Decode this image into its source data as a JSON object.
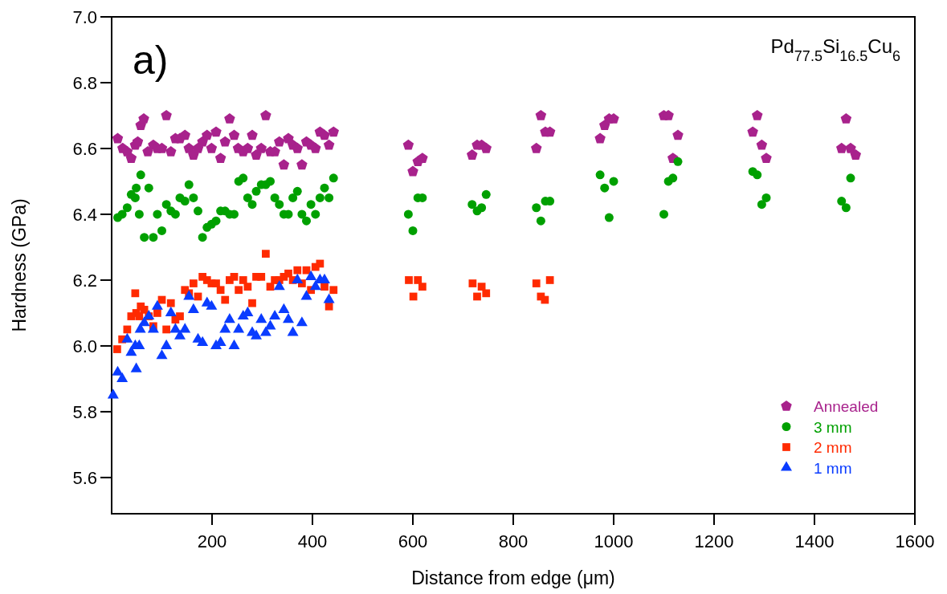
{
  "chart_data": {
    "type": "scatter",
    "xlabel": "Distance from edge (μm)",
    "ylabel": "Hardness (GPa)",
    "annotations": [
      "a)",
      "Pd$_{77.5}$Si$_{16.5}$Cu$_{6}$"
    ],
    "xlim": [
      0,
      1600
    ],
    "xticks": [
      200,
      400,
      600,
      800,
      1000,
      1200,
      1400,
      1600
    ],
    "ylim": [
      5.49,
      7.0
    ],
    "yticks": [
      5.6,
      5.8,
      {
        "value": 6,
        "label": "6.0"
      },
      6.2,
      6.4,
      6.6,
      6.8,
      {
        "value": 7,
        "label": "7.0"
      }
    ],
    "grid": false,
    "legend": "bottom right",
    "series": [
      {
        "name": "Annealed",
        "color": "#a8228c",
        "x": [
          12,
          22,
          31,
          39,
          47,
          52,
          58,
          64,
          72,
          83,
          91,
          100,
          109,
          118,
          127,
          136,
          146,
          154,
          163,
          172,
          181,
          190,
          199,
          208,
          217,
          226,
          235,
          244,
          252,
          262,
          271,
          280,
          288,
          298,
          307,
          316,
          325,
          334,
          343,
          352,
          361,
          370,
          379,
          388,
          397,
          406,
          415,
          424,
          433,
          442,
          591,
          600,
          610,
          619,
          718,
          728,
          737,
          746,
          846,
          855,
          864,
          873,
          973,
          982,
          991,
          1000,
          1100,
          1109,
          1118,
          1128,
          1277,
          1286,
          1295,
          1304,
          1454,
          1463,
          1472,
          1482
        ],
        "values": [
          6.63,
          6.6,
          6.59,
          6.57,
          6.61,
          6.62,
          6.67,
          6.69,
          6.59,
          6.61,
          6.6,
          6.6,
          6.7,
          6.59,
          6.63,
          6.63,
          6.64,
          6.6,
          6.58,
          6.6,
          6.62,
          6.64,
          6.6,
          6.65,
          6.57,
          6.62,
          6.69,
          6.64,
          6.6,
          6.59,
          6.6,
          6.64,
          6.58,
          6.6,
          6.7,
          6.59,
          6.59,
          6.62,
          6.55,
          6.63,
          6.61,
          6.6,
          6.55,
          6.62,
          6.61,
          6.6,
          6.65,
          6.64,
          6.61,
          6.65,
          6.61,
          6.53,
          6.56,
          6.57,
          6.58,
          6.61,
          6.61,
          6.6,
          6.6,
          6.7,
          6.65,
          6.65,
          6.63,
          6.67,
          6.69,
          6.69,
          6.7,
          6.7,
          6.57,
          6.64,
          6.65,
          6.7,
          6.61,
          6.57,
          6.6,
          6.69,
          6.6,
          6.58
        ]
      },
      {
        "name": "3 mm",
        "color": "#00a000",
        "marker": "circle",
        "x": [
          12,
          21,
          31,
          39,
          47,
          49,
          58,
          55,
          65,
          74,
          83,
          91,
          100,
          109,
          118,
          127,
          136,
          146,
          154,
          163,
          172,
          181,
          190,
          199,
          208,
          217,
          226,
          235,
          244,
          253,
          262,
          271,
          280,
          288,
          298,
          307,
          316,
          325,
          334,
          343,
          352,
          361,
          370,
          379,
          388,
          397,
          406,
          415,
          424,
          433,
          442,
          591,
          600,
          610,
          619,
          718,
          728,
          737,
          746,
          846,
          855,
          864,
          873,
          973,
          982,
          991,
          1000,
          1100,
          1109,
          1118,
          1128,
          1277,
          1286,
          1295,
          1304,
          1454,
          1463,
          1472
        ],
        "values": [
          6.39,
          6.4,
          6.42,
          6.46,
          6.45,
          6.48,
          6.52,
          6.4,
          6.33,
          6.48,
          6.33,
          6.4,
          6.35,
          6.43,
          6.41,
          6.4,
          6.45,
          6.44,
          6.49,
          6.45,
          6.41,
          6.33,
          6.36,
          6.37,
          6.38,
          6.41,
          6.41,
          6.4,
          6.4,
          6.5,
          6.51,
          6.45,
          6.43,
          6.47,
          6.49,
          6.49,
          6.5,
          6.45,
          6.43,
          6.4,
          6.4,
          6.45,
          6.47,
          6.4,
          6.38,
          6.43,
          6.4,
          6.45,
          6.48,
          6.45,
          6.51,
          6.4,
          6.35,
          6.45,
          6.45,
          6.43,
          6.41,
          6.42,
          6.46,
          6.42,
          6.38,
          6.44,
          6.44,
          6.52,
          6.48,
          6.39,
          6.5,
          6.4,
          6.5,
          6.51,
          6.56,
          6.53,
          6.52,
          6.43,
          6.45,
          6.44,
          6.42,
          6.51
        ]
      },
      {
        "name": "2 mm",
        "color": "#ff2a00",
        "marker": "square",
        "x": [
          11,
          21,
          31,
          39,
          47,
          49,
          55,
          58,
          65,
          74,
          83,
          91,
          100,
          109,
          118,
          127,
          136,
          146,
          154,
          163,
          172,
          181,
          190,
          199,
          208,
          217,
          226,
          235,
          244,
          253,
          262,
          271,
          280,
          288,
          298,
          307,
          316,
          325,
          334,
          343,
          352,
          361,
          370,
          379,
          388,
          397,
          406,
          415,
          424,
          433,
          442,
          592,
          610,
          619,
          601,
          719,
          737,
          728,
          746,
          846,
          873,
          855,
          863
        ],
        "values": [
          5.99,
          6.02,
          6.05,
          6.09,
          6.16,
          6.1,
          6.09,
          6.12,
          6.11,
          6.09,
          6.06,
          6.1,
          6.14,
          6.05,
          6.13,
          6.08,
          6.09,
          6.17,
          6.16,
          6.19,
          6.15,
          6.21,
          6.2,
          6.19,
          6.19,
          6.17,
          6.14,
          6.2,
          6.21,
          6.17,
          6.2,
          6.18,
          6.13,
          6.21,
          6.21,
          6.28,
          6.18,
          6.2,
          6.2,
          6.21,
          6.22,
          6.2,
          6.23,
          6.19,
          6.23,
          6.17,
          6.24,
          6.25,
          6.18,
          6.12,
          6.17,
          6.2,
          6.2,
          6.18,
          6.15,
          6.19,
          6.18,
          6.15,
          6.16,
          6.19,
          6.2,
          6.15,
          6.14
        ]
      },
      {
        "name": "1 mm",
        "color": "#0a3cff",
        "marker": "triangle",
        "x": [
          3,
          12,
          21,
          31,
          39,
          47,
          49,
          55,
          57,
          65,
          74,
          83,
          91,
          100,
          109,
          118,
          127,
          136,
          146,
          154,
          163,
          172,
          181,
          190,
          199,
          208,
          217,
          226,
          235,
          244,
          253,
          262,
          271,
          280,
          288,
          298,
          307,
          316,
          325,
          334,
          343,
          352,
          361,
          370,
          379,
          388,
          397,
          406,
          415,
          424,
          433
        ],
        "values": [
          5.85,
          5.92,
          5.9,
          6.02,
          5.98,
          6.0,
          5.93,
          6.0,
          6.05,
          6.07,
          6.09,
          6.05,
          6.12,
          5.97,
          6.0,
          6.1,
          6.05,
          6.03,
          6.05,
          6.15,
          6.11,
          6.02,
          6.01,
          6.13,
          6.12,
          6.0,
          6.01,
          6.05,
          6.08,
          6.0,
          6.05,
          6.09,
          6.1,
          6.04,
          6.03,
          6.08,
          6.04,
          6.06,
          6.09,
          6.18,
          6.11,
          6.08,
          6.04,
          6.2,
          6.07,
          6.15,
          6.21,
          6.18,
          6.2,
          6.2,
          6.14
        ]
      }
    ]
  }
}
